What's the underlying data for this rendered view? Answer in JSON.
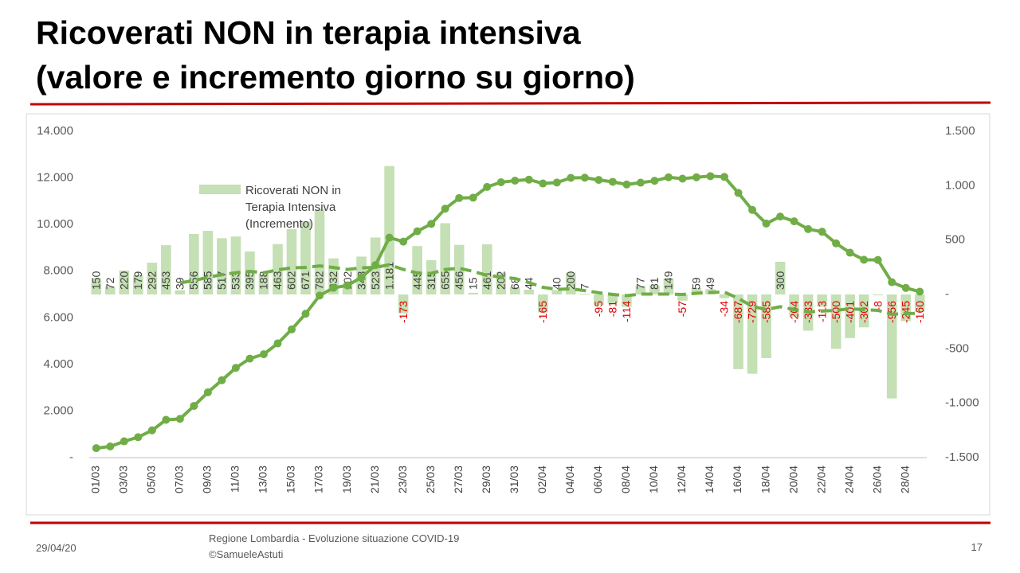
{
  "slide": {
    "title": [
      "Ricoverati NON in terapia intensiva",
      "(valore e incremento giorno su giorno)"
    ],
    "date": "29/04/20",
    "footer": [
      "Regione Lombardia - Evoluzione situazione COVID-19",
      "©SamueleAstuti"
    ],
    "page": "17"
  },
  "chart_data": {
    "type": "combo",
    "categories": [
      "01/03",
      null,
      "03/03",
      null,
      "05/03",
      null,
      "07/03",
      null,
      "09/03",
      null,
      "11/03",
      null,
      "13/03",
      null,
      "15/03",
      null,
      "17/03",
      null,
      "19/03",
      null,
      "21/03",
      null,
      "23/03",
      null,
      "25/03",
      null,
      "27/03",
      null,
      "29/03",
      null,
      "31/03",
      null,
      "02/04",
      null,
      "04/04",
      null,
      "06/04",
      null,
      "08/04",
      null,
      "10/04",
      null,
      "12/04",
      null,
      "14/04",
      null,
      "16/04",
      null,
      "18/04",
      null,
      "20/04",
      null,
      "22/04",
      null,
      "24/04",
      null,
      "26/04",
      null,
      "28/04",
      null
    ],
    "ylim": [
      0,
      14000
    ],
    "yticks": [
      {
        "value": 0,
        "label": "-"
      },
      {
        "value": 2000,
        "label": "2.000"
      },
      {
        "value": 4000,
        "label": "4.000"
      },
      {
        "value": 6000,
        "label": "6.000"
      },
      {
        "value": 8000,
        "label": "8.000"
      },
      {
        "value": 10000,
        "label": "10.000"
      },
      {
        "value": 12000,
        "label": "12.000"
      },
      {
        "value": 14000,
        "label": "14.000"
      }
    ],
    "y2lim": [
      -1500,
      1500
    ],
    "y2ticks": [
      {
        "value": -1500,
        "label": "-1.500"
      },
      {
        "value": -1000,
        "label": "-1.000"
      },
      {
        "value": -500,
        "label": "-500"
      },
      {
        "value": 0,
        "label": "-"
      },
      500,
      {
        "value": 1000,
        "label": "1.000"
      },
      {
        "value": 1500,
        "label": "1.500"
      }
    ],
    "negative_color": "#e00000",
    "grid": false,
    "series": [
      {
        "name": "Ricoverati NON in Terapia Intensiva (Incremento)",
        "type": "bar",
        "axis": "y2",
        "color": "#c5e0b4",
        "values": [
          150,
          72,
          220,
          179,
          292,
          453,
          39,
          556,
          585,
          517,
          533,
          395,
          188,
          463,
          602,
          671,
          782,
          332,
          102,
          348,
          523,
          1181,
          -173,
          445,
          315,
          655,
          456,
          15,
          461,
          202,
          68,
          44,
          -165,
          40,
          200,
          7,
          -95,
          -81,
          -114,
          77,
          81,
          149,
          -57,
          59,
          49,
          -34,
          -687,
          -729,
          -585,
          300,
          -204,
          -333,
          -113,
          -500,
          -401,
          -302,
          -8,
          -956,
          -245,
          -160
        ],
        "value_labels": [
          "150",
          "72",
          "220",
          "179",
          "292",
          "453",
          "39",
          "556",
          "585",
          "517",
          "533",
          "395",
          "188",
          "463",
          "602",
          "671",
          "782",
          "332",
          "102",
          "348",
          "523",
          "1.181",
          "-173",
          "445",
          "315",
          "655",
          "456",
          "15",
          "461",
          "202",
          "68",
          "44",
          "-165",
          "40",
          "200",
          "7",
          "-95",
          "-81",
          "-114",
          "77",
          "81",
          "149",
          "-57",
          "59",
          "49",
          "-34",
          "-687",
          "-729",
          "-585",
          "300",
          "-204",
          "-333",
          "-113",
          "-500",
          "-401",
          "-302",
          "-8",
          "-956",
          "-245",
          "-160"
        ]
      },
      {
        "type": "line",
        "color": "#70ad47",
        "markers": true,
        "values": [
          406,
          478,
          698,
          877,
          1169,
          1622,
          1661,
          2217,
          2802,
          3319,
          3852,
          4247,
          4435,
          4898,
          5500,
          6171,
          6953,
          7285,
          7387,
          7735,
          8258,
          9439,
          9266,
          9711,
          10026,
          10681,
          11137,
          11152,
          11613,
          11815,
          11883,
          11927,
          11762,
          11802,
          12002,
          12009,
          11914,
          11833,
          11719,
          11796,
          11877,
          12026,
          11969,
          12028,
          12077,
          12043,
          11356,
          10627,
          10042,
          10342,
          10138,
          9805,
          9692,
          9192,
          8791,
          8489,
          8481,
          7525,
          7280,
          7120
        ]
      },
      {
        "type": "line",
        "axis": "y2",
        "color": "#70ad47",
        "dashed": true,
        "values": [
          null,
          null,
          null,
          null,
          null,
          null,
          106,
          128,
          157,
          182,
          200,
          212,
          200,
          226,
          245,
          248,
          263,
          248,
          230,
          245,
          248,
          274,
          230,
          197,
          193,
          230,
          241,
          212,
          175,
          161,
          146,
          109,
          66,
          47,
          51,
          36,
          15,
          0,
          -11,
          4,
          4,
          4,
          0,
          11,
          18,
          22,
          -36,
          -109,
          -139,
          -113,
          -139,
          -161,
          -153,
          -146,
          -131,
          -139,
          -146,
          -182,
          -175,
          -175
        ]
      }
    ]
  }
}
